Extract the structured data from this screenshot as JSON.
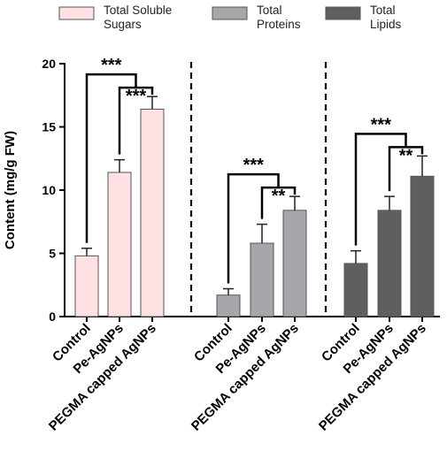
{
  "chart_data": {
    "type": "bar",
    "ylabel": "Content (mg/g FW)",
    "ylim": [
      0,
      20
    ],
    "yticks": [
      0,
      5,
      10,
      15,
      20
    ],
    "categories": [
      "Control",
      "Pe-AgNPs",
      "PEGMA capped AgNPs"
    ],
    "legend_position": "top",
    "series": [
      {
        "name_lines": [
          "Total Soluble",
          "Sugars"
        ],
        "color": "#fde1e3",
        "values": [
          4.8,
          11.4,
          16.4
        ],
        "errors": [
          0.6,
          1.0,
          1.0
        ],
        "significance": [
          {
            "from": 0,
            "to": 2,
            "label": "***"
          },
          {
            "from": 1,
            "to": 2,
            "label": "***"
          }
        ]
      },
      {
        "name_lines": [
          "Total",
          "Proteins"
        ],
        "color": "#a7a7ab",
        "values": [
          1.7,
          5.8,
          8.4
        ],
        "errors": [
          0.5,
          1.5,
          1.1
        ],
        "significance": [
          {
            "from": 0,
            "to": 2,
            "label": "***"
          },
          {
            "from": 1,
            "to": 2,
            "label": "**"
          }
        ]
      },
      {
        "name_lines": [
          "Total",
          "Lipids"
        ],
        "color": "#5f5f61",
        "values": [
          4.2,
          8.4,
          11.1
        ],
        "errors": [
          1.0,
          1.1,
          1.6
        ],
        "significance": [
          {
            "from": 0,
            "to": 2,
            "label": "***"
          },
          {
            "from": 1,
            "to": 2,
            "label": "**"
          }
        ]
      }
    ]
  }
}
